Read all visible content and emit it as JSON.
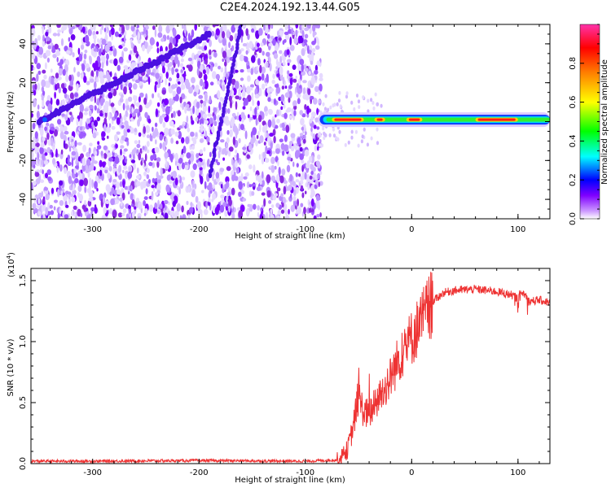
{
  "title": "C2E4.2024.192.13.44.G05",
  "chart_data": [
    {
      "type": "heatmap",
      "xlabel": "Height of straight line (km)",
      "ylabel": "Frequency (Hz)",
      "xlim": [
        -358,
        130
      ],
      "ylim": [
        -50,
        50
      ],
      "xticks": [
        -300,
        -200,
        -100,
        0,
        100
      ],
      "yticks": [
        -40,
        -20,
        0,
        20,
        40
      ],
      "noise_region_x": [
        -358,
        -85
      ],
      "diagonal_trace": {
        "from": [
          -350,
          0
        ],
        "to": [
          -190,
          45
        ]
      },
      "steep_trace": {
        "from": [
          -190,
          -28
        ],
        "to": [
          -160,
          50
        ]
      },
      "tone_band": {
        "frequency": 1,
        "x_range": [
          -88,
          130
        ],
        "peak_segments": [
          [
            -75,
            -45
          ],
          [
            -35,
            -25
          ],
          [
            -5,
            10
          ],
          [
            60,
            100
          ]
        ]
      },
      "colorbar": {
        "label": "Normalized spectral amplitude",
        "range": [
          0,
          1
        ],
        "ticks": [
          "0.0",
          "0.2",
          "0.4",
          "0.6",
          "0.8"
        ],
        "stops": [
          "#ffffff",
          "#cc99ff",
          "#7f00ff",
          "#0000ff",
          "#00ffff",
          "#00ff00",
          "#ffff00",
          "#ff8000",
          "#ff0000",
          "#ff33aa"
        ]
      }
    },
    {
      "type": "line",
      "xlabel": "Height of straight line (km)",
      "ylabel": "SNR (10 * v/v)",
      "scale_label": "(x10",
      "scale_exp": "4",
      "scale_close": ")",
      "xlim": [
        -358,
        130
      ],
      "ylim": [
        0,
        1.6
      ],
      "xticks": [
        -300,
        -200,
        -100,
        0,
        100
      ],
      "yticks": [
        "0.0",
        "0.5",
        "1.0",
        "1.5"
      ],
      "color": "#ee3333",
      "series": [
        {
          "x": [
            -358,
            -300,
            -200,
            -100,
            -68,
            -60,
            -55,
            -50,
            -45,
            -40,
            -30,
            -20,
            -10,
            0,
            10,
            20,
            30,
            40,
            60,
            80,
            95,
            100,
            105,
            110,
            120,
            130
          ],
          "values": [
            0.02,
            0.02,
            0.025,
            0.02,
            0.03,
            0.12,
            0.3,
            0.55,
            0.42,
            0.4,
            0.55,
            0.7,
            0.9,
            1.03,
            1.18,
            1.33,
            1.4,
            1.42,
            1.43,
            1.41,
            1.38,
            1.35,
            1.4,
            1.33,
            1.34,
            1.32
          ]
        }
      ]
    }
  ]
}
